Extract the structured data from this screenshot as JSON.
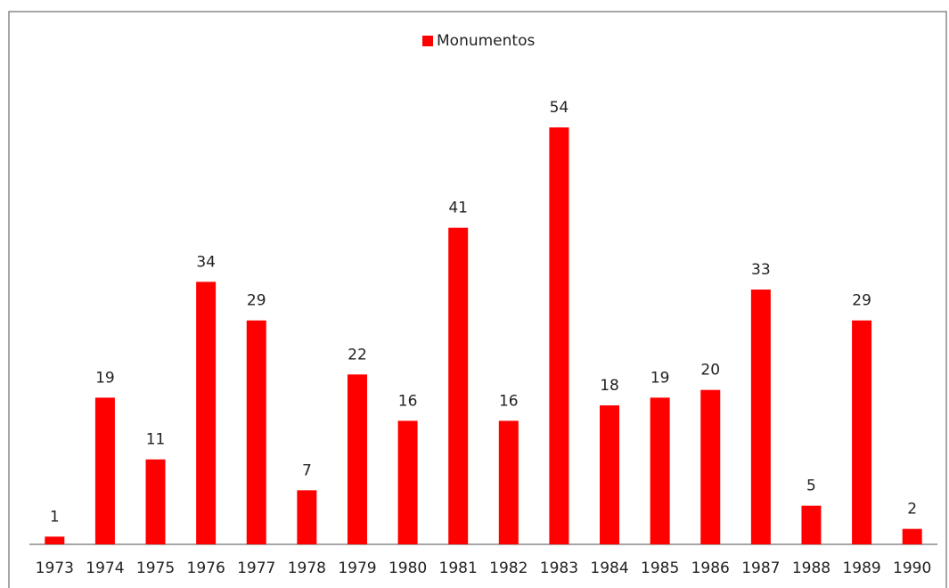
{
  "chart_data": {
    "type": "bar",
    "categories": [
      "1973",
      "1974",
      "1975",
      "1976",
      "1977",
      "1978",
      "1979",
      "1980",
      "1981",
      "1982",
      "1983",
      "1984",
      "1985",
      "1986",
      "1987",
      "1988",
      "1989",
      "1990"
    ],
    "series": [
      {
        "name": "Monumentos",
        "color": "#ff0000",
        "values": [
          1,
          19,
          11,
          34,
          29,
          7,
          22,
          16,
          41,
          16,
          54,
          18,
          19,
          20,
          33,
          5,
          29,
          2
        ]
      }
    ],
    "legend": "top",
    "grid": false
  }
}
